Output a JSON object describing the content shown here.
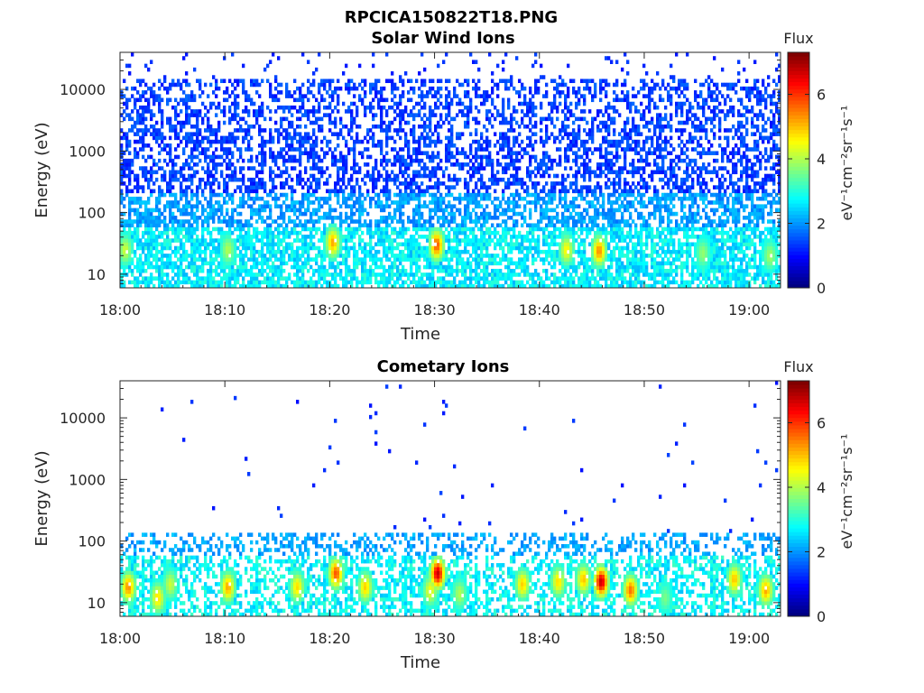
{
  "figure": {
    "main_title": "RPCICA150822T18.PNG"
  },
  "chart_data": [
    {
      "type": "heatmap",
      "title": "Solar Wind Ions",
      "xlabel": "Time",
      "ylabel": "Energy (eV)",
      "x_tick_labels": [
        "18:00",
        "18:10",
        "18:20",
        "18:30",
        "18:40",
        "18:50",
        "19:00"
      ],
      "x_range_minutes": [
        0,
        63
      ],
      "y_scale": "log",
      "y_range": [
        6,
        40000
      ],
      "y_tick_values": [
        10,
        100,
        1000,
        10000
      ],
      "y_tick_labels": [
        "10",
        "100",
        "1000",
        "10000"
      ],
      "colorbar": {
        "title": "Flux",
        "label": "eV⁻¹cm⁻²sr⁻¹s⁻¹",
        "range": [
          0,
          7.3
        ],
        "ticks": [
          0,
          2,
          4,
          6
        ],
        "tick_labels": [
          "0",
          "2",
          "4",
          "6"
        ],
        "colormap": "jet"
      },
      "features": {
        "background_level": 1.3,
        "low_energy_band_ev": [
          6,
          60
        ],
        "low_energy_level": 2.6,
        "hotspots": [
          {
            "time_min": 0.5,
            "energy_ev": 25,
            "value": 4.2
          },
          {
            "time_min": 10.3,
            "energy_ev": 25,
            "value": 4.0
          },
          {
            "time_min": 20.3,
            "energy_ev": 33,
            "value": 5.2
          },
          {
            "time_min": 30.2,
            "energy_ev": 30,
            "value": 5.8
          },
          {
            "time_min": 42.6,
            "energy_ev": 25,
            "value": 4.6
          },
          {
            "time_min": 45.7,
            "energy_ev": 24,
            "value": 5.4
          },
          {
            "time_min": 55.6,
            "energy_ev": 22,
            "value": 3.8
          },
          {
            "time_min": 62.0,
            "energy_ev": 20,
            "value": 3.9
          }
        ]
      }
    },
    {
      "type": "heatmap",
      "title": "Cometary Ions",
      "xlabel": "Time",
      "ylabel": "Energy (eV)",
      "x_tick_labels": [
        "18:00",
        "18:10",
        "18:20",
        "18:30",
        "18:40",
        "18:50",
        "19:00"
      ],
      "x_range_minutes": [
        0,
        63
      ],
      "y_scale": "log",
      "y_range": [
        6,
        40000
      ],
      "y_tick_values": [
        10,
        100,
        1000,
        10000
      ],
      "y_tick_labels": [
        "10",
        "100",
        "1000",
        "10000"
      ],
      "colorbar": {
        "title": "Flux",
        "label": "eV⁻¹cm⁻²sr⁻¹s⁻¹",
        "range": [
          0,
          7.3
        ],
        "ticks": [
          0,
          2,
          4,
          6
        ],
        "tick_labels": [
          "0",
          "2",
          "4",
          "6"
        ],
        "colormap": "jet"
      },
      "features": {
        "background_level": 1.2,
        "low_energy_band_ev": [
          6,
          130
        ],
        "low_energy_level": 2.8,
        "hotspots": [
          {
            "time_min": 0.8,
            "energy_ev": 18,
            "value": 5.4
          },
          {
            "time_min": 3.6,
            "energy_ev": 12,
            "value": 4.8
          },
          {
            "time_min": 4.8,
            "energy_ev": 20,
            "value": 4.2
          },
          {
            "time_min": 10.3,
            "energy_ev": 18,
            "value": 5.2
          },
          {
            "time_min": 16.9,
            "energy_ev": 18,
            "value": 4.8
          },
          {
            "time_min": 20.6,
            "energy_ev": 30,
            "value": 5.8
          },
          {
            "time_min": 23.4,
            "energy_ev": 18,
            "value": 4.9
          },
          {
            "time_min": 29.6,
            "energy_ev": 16,
            "value": 4.5
          },
          {
            "time_min": 30.3,
            "energy_ev": 30,
            "value": 6.8
          },
          {
            "time_min": 32.4,
            "energy_ev": 14,
            "value": 4.0
          },
          {
            "time_min": 38.4,
            "energy_ev": 20,
            "value": 4.9
          },
          {
            "time_min": 41.8,
            "energy_ev": 22,
            "value": 4.8
          },
          {
            "time_min": 44.2,
            "energy_ev": 24,
            "value": 5.0
          },
          {
            "time_min": 45.9,
            "energy_ev": 22,
            "value": 6.8
          },
          {
            "time_min": 48.7,
            "energy_ev": 16,
            "value": 5.6
          },
          {
            "time_min": 52.0,
            "energy_ev": 12,
            "value": 3.6
          },
          {
            "time_min": 58.6,
            "energy_ev": 24,
            "value": 5.0
          },
          {
            "time_min": 61.6,
            "energy_ev": 16,
            "value": 5.2
          }
        ]
      }
    }
  ]
}
